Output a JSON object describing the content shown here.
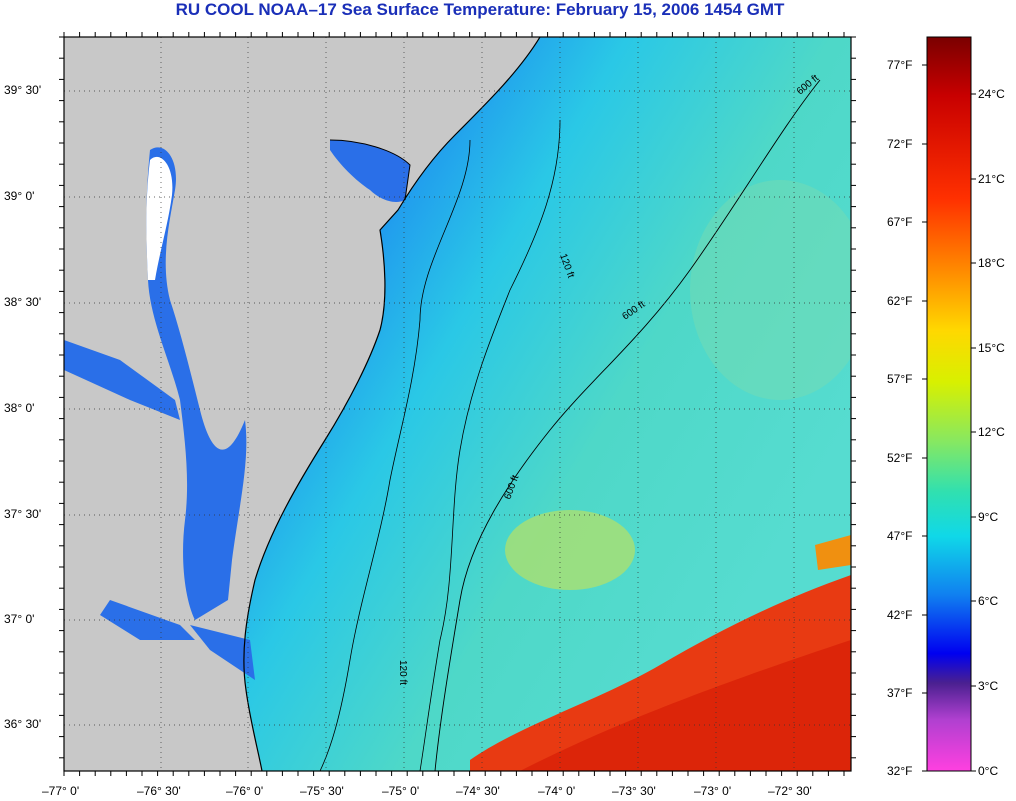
{
  "title": "RU COOL  NOAA–17  Sea Surface Temperature:  February 15, 2006 1454 GMT",
  "map": {
    "lat_labels": [
      "39° 30'",
      "39° 0'",
      "38° 30'",
      "38° 0'",
      "37° 30'",
      "37° 0'",
      "36° 30'"
    ],
    "lon_labels": [
      "–77° 0'",
      "–76° 30'",
      "–76° 0'",
      "–75° 30'",
      "–75° 0'",
      "–74° 30'",
      "–74° 0'",
      "–73° 30'",
      "–73° 0'",
      "–72° 30'"
    ],
    "contour_labels": [
      "120 ft",
      "600 ft"
    ],
    "colors": {
      "land": "#c8c8c8",
      "no_data": "#ffffff",
      "contour": "#000000",
      "cold_water": "#1f6fe8",
      "mid_water": "#2ac4e8",
      "warm_water": "#8fe08a",
      "gulf_stream": "#e82a10"
    }
  },
  "colorbar": {
    "fahrenheit_labels": [
      "77°F",
      "72°F",
      "67°F",
      "62°F",
      "57°F",
      "52°F",
      "47°F",
      "42°F",
      "37°F",
      "32°F"
    ],
    "celsius_labels": [
      "24°C",
      "21°C",
      "18°C",
      "15°C",
      "12°C",
      "9°C",
      "6°C",
      "3°C",
      "0°C"
    ]
  }
}
